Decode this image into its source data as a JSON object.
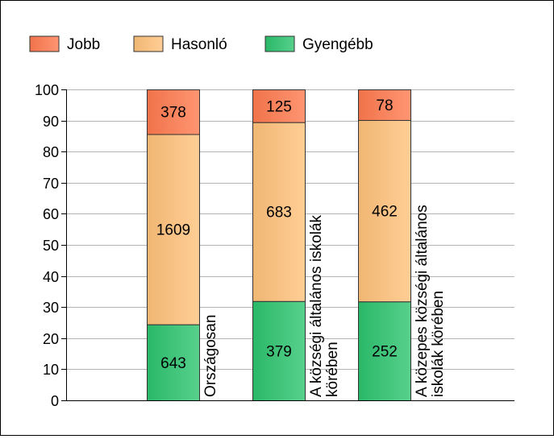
{
  "chart_data": {
    "type": "bar",
    "stacked": "percent",
    "categories": [
      [
        "Országosan"
      ],
      [
        "A községi általános iskolák",
        "körében"
      ],
      [
        "A közepes községi általános",
        "iskolák körében"
      ]
    ],
    "series": [
      {
        "name": "Gyengébb",
        "values": [
          643,
          379,
          252
        ],
        "color": "#2dc46f"
      },
      {
        "name": "Hasonló",
        "values": [
          1609,
          683,
          462
        ],
        "color": "#ffc27a"
      },
      {
        "name": "Jobb",
        "values": [
          378,
          125,
          78
        ],
        "color": "#ff7a4f"
      }
    ],
    "legend_order": [
      "Jobb",
      "Hasonló",
      "Gyengébb"
    ],
    "legend_position": "top-left",
    "ylim": [
      0,
      100
    ],
    "yticks": [
      0,
      10,
      20,
      30,
      40,
      50,
      60,
      70,
      80,
      90,
      100
    ],
    "grid": true,
    "xlabel": "",
    "ylabel": ""
  }
}
